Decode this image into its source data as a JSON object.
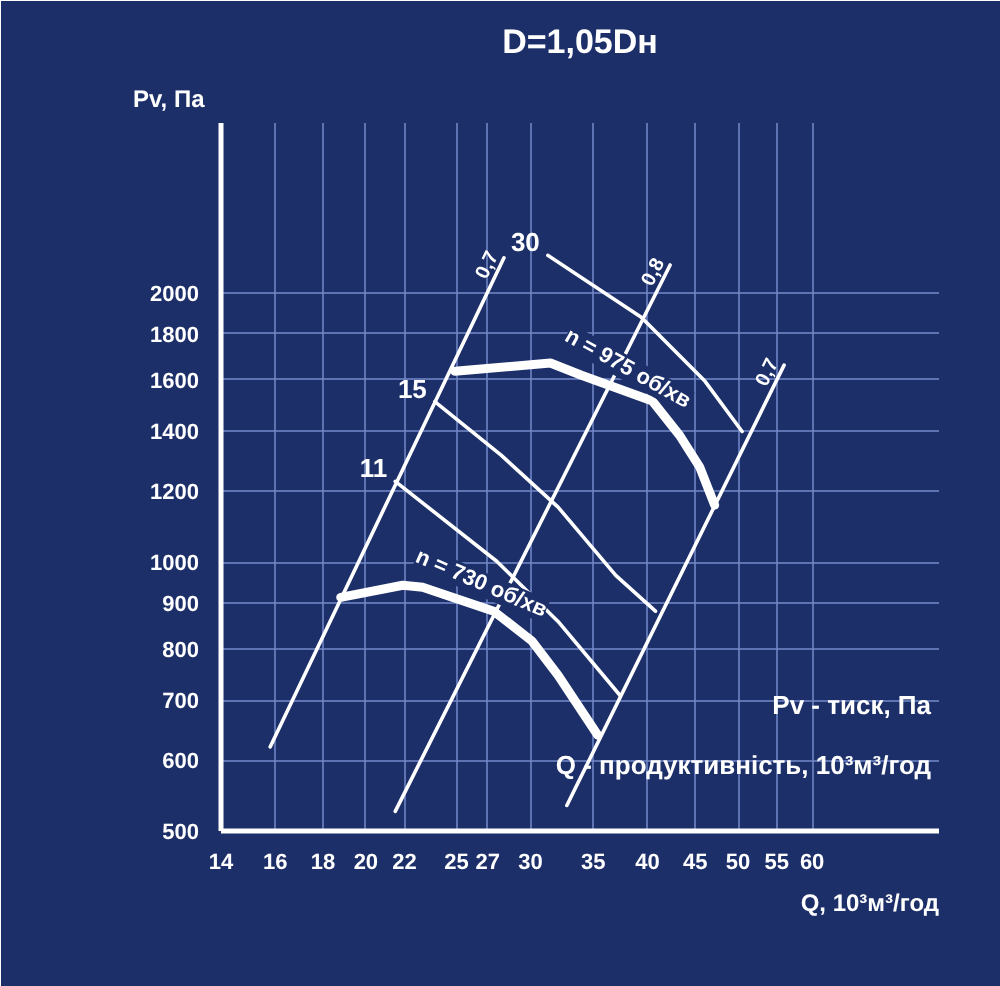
{
  "chart_data": {
    "type": "line",
    "title": "D=1,05Dн",
    "xlabel": "Q, 10³м³/год",
    "ylabel": "Pv, Па",
    "log": "xy",
    "grid": true,
    "xlim": [
      14,
      82
    ],
    "ylim": [
      500,
      3100
    ],
    "xticks": [
      14,
      16,
      18,
      20,
      22,
      25,
      27,
      30,
      35,
      40,
      45,
      50,
      55,
      60
    ],
    "yticks": [
      500,
      600,
      700,
      800,
      900,
      1000,
      1200,
      1400,
      1600,
      1800,
      2000
    ],
    "series": [
      {
        "name": "n = 975 об/хв",
        "color": "#ffffff",
        "x": [
          24.9,
          31.5,
          34.0,
          40.5,
          43.3,
          45.5,
          47.2
        ],
        "values": [
          1635,
          1670,
          1618,
          1514,
          1386,
          1277,
          1158
        ]
      },
      {
        "name": "n = 730 об/хв",
        "color": "#ffffff",
        "x": [
          18.8,
          21.9,
          23.0,
          27.4,
          30.1,
          32.1,
          35.4
        ],
        "values": [
          913,
          942,
          937,
          881,
          816,
          747,
          640
        ]
      },
      {
        "name": "0,7",
        "color": "#ffffff",
        "x": [
          15.8,
          28.1
        ],
        "values": [
          621,
          2190
        ]
      },
      {
        "name": "0,8",
        "color": "#ffffff",
        "x": [
          21.5,
          42.3
        ],
        "values": [
          526,
          2150
        ]
      },
      {
        "name": "0,7",
        "color": "#ffffff",
        "x": [
          32.8,
          56.0
        ],
        "values": [
          534,
          1661
        ]
      },
      {
        "name": "30",
        "color": "#ffffff",
        "x": [
          31.3,
          39.4,
          46.1,
          50.5
        ],
        "values": [
          2204,
          1879,
          1593,
          1400
        ]
      },
      {
        "name": "15",
        "color": "#ffffff",
        "x": [
          23.7,
          27.9,
          32.1,
          37.0,
          40.8
        ],
        "values": [
          1512,
          1317,
          1152,
          966,
          881
        ]
      },
      {
        "name": "11",
        "color": "#ffffff",
        "x": [
          21.5,
          27.6,
          32.1,
          37.4
        ],
        "values": [
          1231,
          1002,
          858,
          709
        ]
      }
    ],
    "annotations": [
      "Pv - тиск, Па",
      "Q - продуктивність, 10³м³/год"
    ]
  }
}
